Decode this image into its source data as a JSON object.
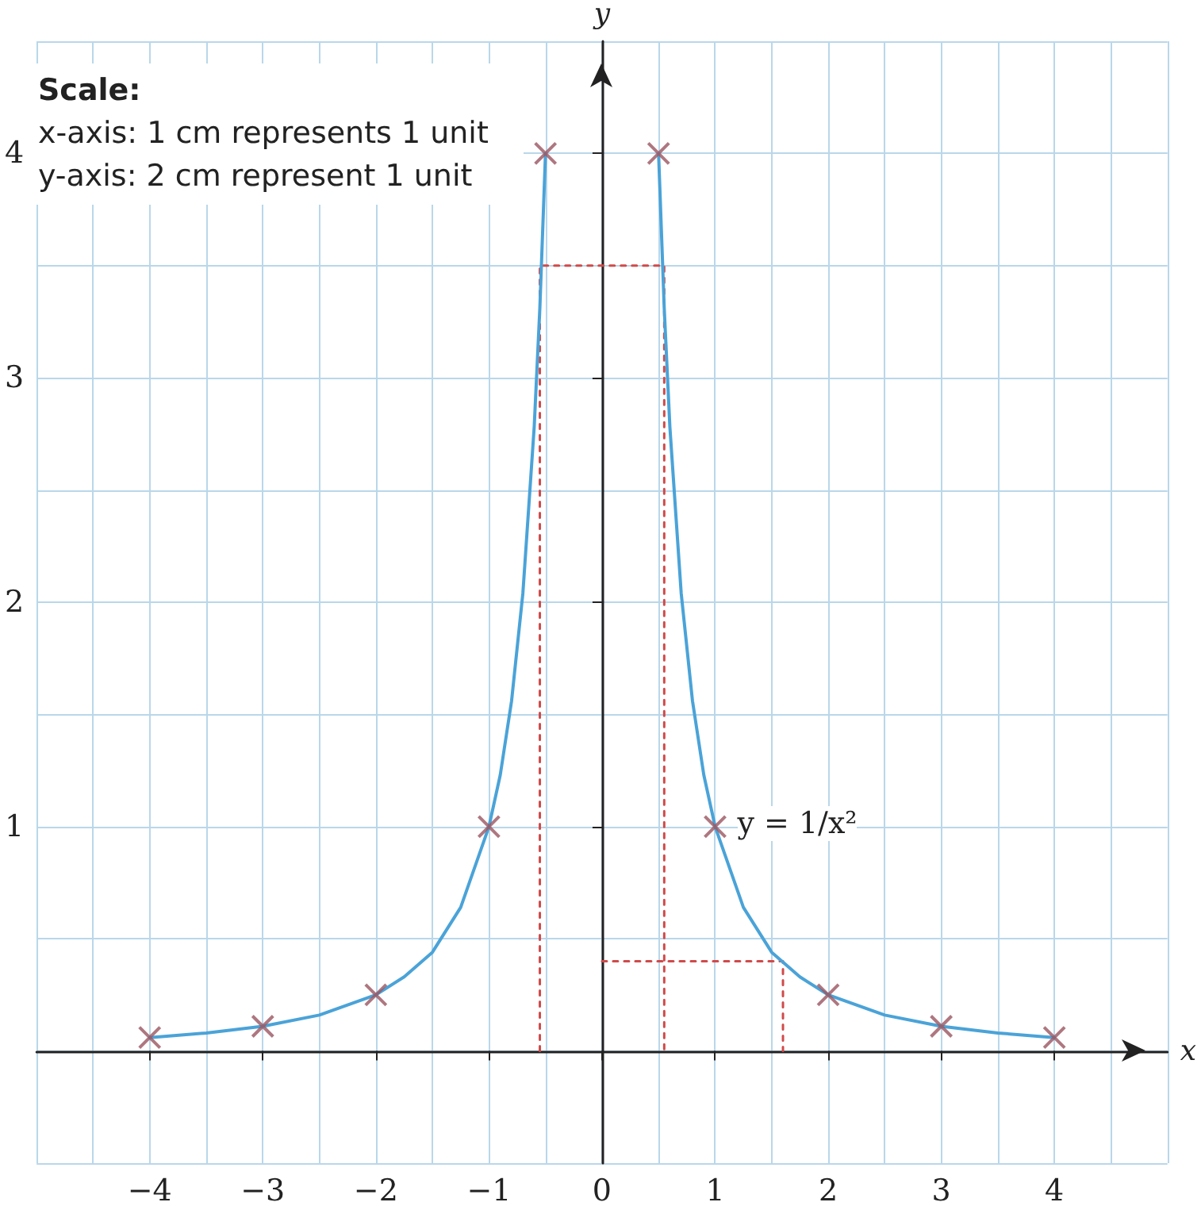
{
  "chart_data": {
    "type": "line",
    "xlabel": "x",
    "ylabel": "y",
    "annotations": [
      "Scale:",
      "x-axis: 1 cm represents 1 unit",
      "y-axis: 2 cm represent 1 unit",
      {
        "text": "y = 1/x²",
        "x": 1,
        "y": 1
      }
    ],
    "xlim": [
      -5,
      5
    ],
    "ylim": [
      -0.5,
      4.5
    ],
    "xticks": [
      {
        "value": -5,
        "label": null
      },
      {
        "value": -4.5,
        "label": null
      },
      {
        "value": -4,
        "label": "−4"
      },
      {
        "value": -3.5,
        "label": null
      },
      {
        "value": -3,
        "label": "−3"
      },
      {
        "value": -2.5,
        "label": null
      },
      {
        "value": -2,
        "label": "−2"
      },
      {
        "value": -1.5,
        "label": null
      },
      {
        "value": -1,
        "label": "−1"
      },
      {
        "value": -0.5,
        "label": null
      },
      0,
      {
        "value": 0.5,
        "label": null
      },
      1,
      {
        "value": 1.5,
        "label": null
      },
      2,
      {
        "value": 2.5,
        "label": null
      },
      3,
      {
        "value": 3.5,
        "label": null
      },
      4,
      {
        "value": 4.5,
        "label": null
      },
      {
        "value": 5,
        "label": null
      }
    ],
    "yticks": [
      {
        "value": -0.5,
        "label": null
      },
      {
        "value": 0,
        "label": null
      },
      {
        "value": 0.5,
        "label": null
      },
      1,
      {
        "value": 1.5,
        "label": null
      },
      2,
      {
        "value": 2.5,
        "label": null
      },
      3,
      {
        "value": 3.5,
        "label": null
      },
      4,
      {
        "value": 4.5,
        "label": null
      }
    ],
    "grid": true,
    "series": [
      {
        "color": "#4aa3d8",
        "marker": "none",
        "x": [
          -4,
          -3.5,
          -3,
          -2.5,
          -2,
          -1.75,
          -1.5,
          -1.25,
          -1,
          -0.9,
          -0.8,
          -0.7,
          -0.6,
          -0.55,
          -0.5
        ],
        "values": [
          0.06,
          0.08,
          0.11,
          0.16,
          0.25,
          0.33,
          0.44,
          0.64,
          1,
          1.23,
          1.56,
          2.04,
          2.78,
          3.31,
          4
        ]
      },
      {
        "color": "#4aa3d8",
        "marker": "none",
        "x": [
          0.5,
          0.55,
          0.6,
          0.7,
          0.8,
          0.9,
          1,
          1.25,
          1.5,
          1.75,
          2,
          2.5,
          3,
          3.5,
          4
        ],
        "values": [
          4,
          3.31,
          2.78,
          2.04,
          1.56,
          1.23,
          1,
          0.64,
          0.44,
          0.33,
          0.25,
          0.16,
          0.11,
          0.08,
          0.06
        ]
      },
      {
        "color": "#d04a4a",
        "marker": "none",
        "line_style": "dotted",
        "x": [
          -0.55,
          -0.55,
          0.55,
          0.55
        ],
        "values": [
          0,
          3.5,
          3.5,
          0
        ]
      },
      {
        "color": "#d04a4a",
        "marker": "none",
        "line_style": "dotted",
        "x": [
          0,
          1.6,
          1.6
        ],
        "values": [
          0.4,
          0.4,
          0
        ]
      },
      {
        "type": "scatter",
        "color": "#9a5560",
        "marker": "cross",
        "x": [
          -4,
          -3,
          -2,
          -1,
          -0.5,
          0.5,
          1,
          2,
          3,
          4
        ],
        "values": [
          0.06,
          0.11,
          0.25,
          1,
          4,
          4,
          1,
          0.25,
          0.11,
          0.06
        ]
      }
    ]
  }
}
